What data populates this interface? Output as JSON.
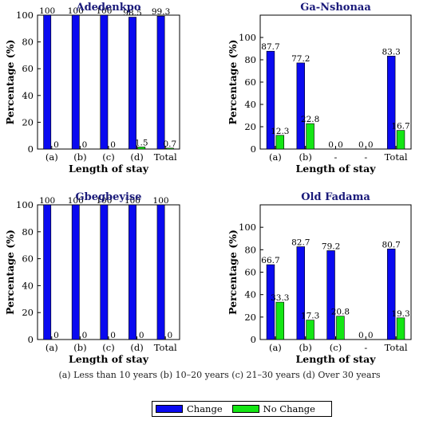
{
  "footnote": "(a) Less than 10 years (b) 10–20 years (c) 21–30 years (d) Over 30 years",
  "legend": {
    "change_label": "Change",
    "no_change_label": "No Change"
  },
  "colors": {
    "change": "#0a0af0",
    "no_change": "#14e614",
    "title": "#1a1a7a"
  },
  "chart_data": [
    {
      "type": "bar",
      "title": "Adedenkpo",
      "xlabel": "Length of stay",
      "ylabel": "Percentage (%)",
      "ylim": [
        0,
        100
      ],
      "yticks": [
        0,
        20,
        40,
        60,
        80,
        100
      ],
      "categories": [
        "(a)",
        "(b)",
        "(c)",
        "(d)",
        "Total"
      ],
      "series": [
        {
          "name": "Change",
          "values": [
            100,
            100,
            100,
            98.5,
            99.3
          ],
          "labels": [
            "100",
            "100",
            "100",
            "98.5",
            "99.3"
          ]
        },
        {
          "name": "No Change",
          "values": [
            0,
            0,
            0,
            1.5,
            0.7
          ],
          "labels": [
            "0",
            "0",
            "0",
            "1.5",
            "0.7"
          ]
        }
      ]
    },
    {
      "type": "bar",
      "title": "Ga-Nshonaa",
      "xlabel": "Length of stay",
      "ylabel": "Percentage (%)",
      "ylim": [
        0,
        120
      ],
      "yticks": [
        0,
        20,
        40,
        60,
        80,
        100
      ],
      "categories": [
        "(a)",
        "(b)",
        "-",
        "-",
        "Total"
      ],
      "series": [
        {
          "name": "Change",
          "values": [
            87.7,
            77.2,
            0,
            0,
            83.3
          ],
          "labels": [
            "87.7",
            "77.2",
            "0",
            "0",
            "83.3"
          ]
        },
        {
          "name": "No Change",
          "values": [
            12.3,
            22.8,
            0,
            0,
            16.7
          ],
          "labels": [
            "12.3",
            "22.8",
            "0",
            "0",
            "16.7"
          ]
        }
      ]
    },
    {
      "type": "bar",
      "title": "Gbegbeyise",
      "xlabel": "Length of stay",
      "ylabel": "Percentage (%)",
      "ylim": [
        0,
        100
      ],
      "yticks": [
        0,
        20,
        40,
        60,
        80,
        100
      ],
      "categories": [
        "(a)",
        "(b)",
        "(c)",
        "(d)",
        "Total"
      ],
      "series": [
        {
          "name": "Change",
          "values": [
            100,
            100,
            100,
            100,
            100
          ],
          "labels": [
            "100",
            "100",
            "100",
            "100",
            "100"
          ]
        },
        {
          "name": "No Change",
          "values": [
            0,
            0,
            0,
            0,
            0
          ],
          "labels": [
            "0",
            "0",
            "0",
            "0",
            "0"
          ]
        }
      ]
    },
    {
      "type": "bar",
      "title": "Old Fadama",
      "xlabel": "Length of stay",
      "ylabel": "Percentage (%)",
      "ylim": [
        0,
        120
      ],
      "yticks": [
        0,
        20,
        40,
        60,
        80,
        100
      ],
      "categories": [
        "(a)",
        "(b)",
        "(c)",
        "-",
        "Total"
      ],
      "series": [
        {
          "name": "Change",
          "values": [
            66.7,
            82.7,
            79.2,
            0,
            80.7
          ],
          "labels": [
            "66.7",
            "82.7",
            "79.2",
            "0",
            "80.7"
          ]
        },
        {
          "name": "No Change",
          "values": [
            33.3,
            17.3,
            20.8,
            0,
            19.3
          ],
          "labels": [
            "33.3",
            "17.3",
            "20.8",
            "0",
            "19.3"
          ]
        }
      ]
    }
  ]
}
